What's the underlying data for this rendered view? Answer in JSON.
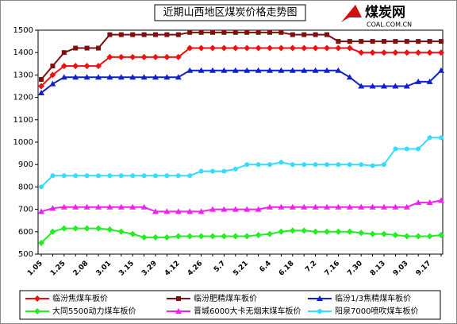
{
  "logo": {
    "name": "煤炭网",
    "domain": "COAL.COM.CN"
  },
  "chart_data": {
    "type": "line",
    "title": "近期山西地区煤炭价格走势图",
    "categories": [
      "1.05",
      null,
      "1.25",
      null,
      "2.08",
      null,
      "3.01",
      null,
      "3.15",
      null,
      "3.29",
      null,
      "4.12",
      null,
      "4.26",
      null,
      "5.7",
      null,
      "5.21",
      null,
      "6.4",
      null,
      "6.18",
      null,
      "7.2",
      null,
      "7.16",
      null,
      "7.30",
      null,
      "8.13",
      null,
      "9.03",
      null,
      "9.17",
      null
    ],
    "ylim": [
      500,
      1500
    ],
    "yticks": [
      500,
      600,
      700,
      800,
      900,
      1000,
      1100,
      1200,
      1300,
      1400,
      1500
    ],
    "grid": false,
    "legend": "bottom",
    "series": [
      {
        "name": "临汾焦煤车板价",
        "color": "#ee1111",
        "marker": "diamond",
        "values": [
          1250,
          1300,
          1340,
          1340,
          1340,
          1340,
          1380,
          1380,
          1380,
          1380,
          1380,
          1380,
          1380,
          1420,
          1420,
          1420,
          1420,
          1420,
          1420,
          1420,
          1420,
          1420,
          1420,
          1420,
          1420,
          1420,
          1420,
          1420,
          1400,
          1400,
          1400,
          1400,
          1400,
          1400,
          1400,
          1400
        ]
      },
      {
        "name": "临汾肥精煤车板价",
        "color": "#7f1010",
        "marker": "square",
        "values": [
          1280,
          1340,
          1400,
          1420,
          1420,
          1420,
          1480,
          1480,
          1480,
          1480,
          1480,
          1480,
          1480,
          1490,
          1490,
          1490,
          1490,
          1490,
          1490,
          1490,
          1490,
          1490,
          1480,
          1480,
          1480,
          1480,
          1450,
          1450,
          1450,
          1450,
          1450,
          1450,
          1450,
          1450,
          1450,
          1450
        ]
      },
      {
        "name": "临汾1/3焦精煤车板价",
        "color": "#1020cc",
        "marker": "triangle",
        "values": [
          1220,
          1260,
          1290,
          1290,
          1290,
          1290,
          1290,
          1290,
          1290,
          1290,
          1290,
          1290,
          1290,
          1320,
          1320,
          1320,
          1320,
          1320,
          1320,
          1320,
          1320,
          1320,
          1320,
          1320,
          1320,
          1320,
          1320,
          1290,
          1250,
          1250,
          1250,
          1250,
          1250,
          1270,
          1270,
          1320
        ]
      },
      {
        "name": "大同5500动力煤车板价",
        "color": "#22ee22",
        "marker": "diamond",
        "values": [
          550,
          600,
          615,
          615,
          615,
          615,
          610,
          600,
          590,
          575,
          575,
          575,
          580,
          580,
          580,
          580,
          580,
          580,
          580,
          585,
          590,
          600,
          605,
          605,
          600,
          600,
          600,
          600,
          595,
          590,
          590,
          585,
          580,
          580,
          580,
          585
        ]
      },
      {
        "name": "晋城6000大卡无烟末煤车板价",
        "color": "#ee22ee",
        "marker": "triangle",
        "values": [
          690,
          705,
          710,
          710,
          710,
          710,
          710,
          710,
          710,
          710,
          690,
          690,
          690,
          690,
          690,
          700,
          700,
          700,
          700,
          700,
          710,
          710,
          710,
          710,
          710,
          710,
          710,
          710,
          710,
          710,
          710,
          710,
          710,
          730,
          730,
          740
        ]
      },
      {
        "name": "阳泉7000喷吹煤车板价",
        "color": "#33ddff",
        "marker": "circle",
        "values": [
          800,
          850,
          850,
          850,
          850,
          850,
          850,
          850,
          850,
          850,
          850,
          850,
          850,
          850,
          870,
          870,
          870,
          880,
          900,
          900,
          900,
          910,
          900,
          900,
          900,
          900,
          900,
          900,
          900,
          895,
          900,
          970,
          970,
          970,
          1020,
          1020
        ]
      }
    ]
  }
}
